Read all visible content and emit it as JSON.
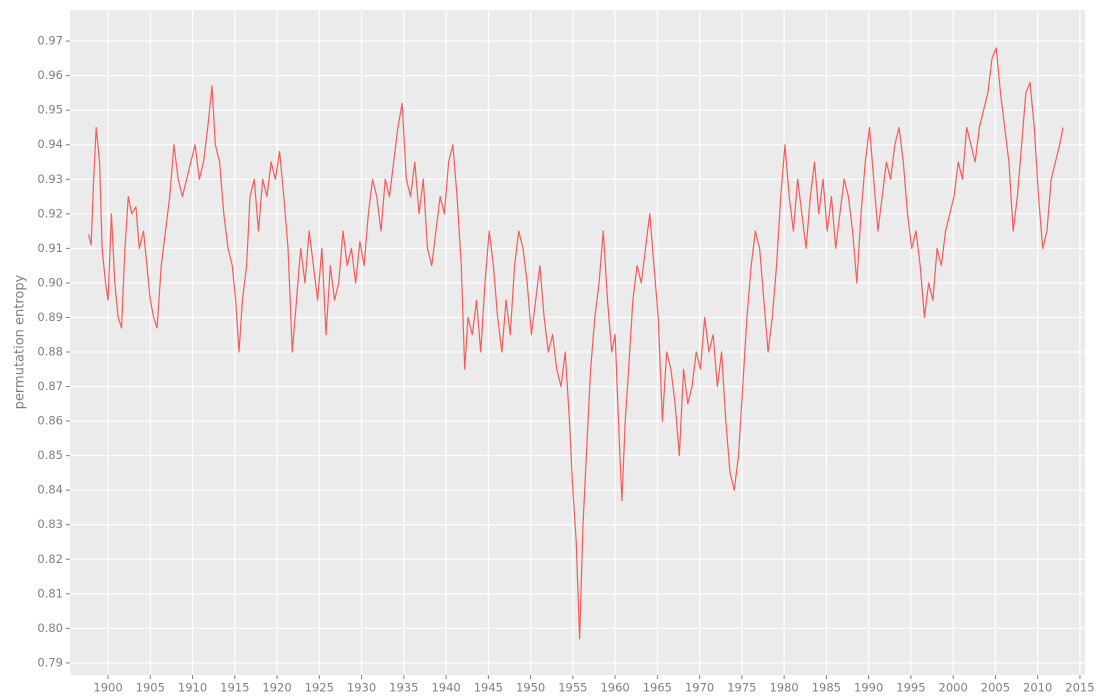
{
  "chart_data": {
    "type": "line",
    "ylabel": "permutation entropy",
    "color": "#f55b5b",
    "grid": true,
    "xlim": [
      1895.5,
      2015.6
    ],
    "ylim": [
      0.7865,
      0.979
    ],
    "xticks": [
      1900,
      1905,
      1910,
      1915,
      1920,
      1925,
      1930,
      1935,
      1940,
      1945,
      1950,
      1955,
      1960,
      1965,
      1970,
      1975,
      1980,
      1985,
      1990,
      1995,
      2000,
      2005,
      2010,
      2015
    ],
    "yticks": [
      0.79,
      {
        "value": 0.8,
        "label": "0.80"
      },
      0.81,
      0.82,
      0.83,
      0.84,
      0.85,
      0.86,
      0.87,
      0.88,
      0.89,
      {
        "value": 0.9,
        "label": "0.90"
      },
      0.91,
      0.92,
      0.93,
      0.94,
      0.95,
      0.96,
      0.97
    ],
    "x": [
      1897.7,
      1898.0,
      1898.3,
      1898.6,
      1899.0,
      1899.3,
      1899.7,
      1900.0,
      1900.4,
      1900.8,
      1901.2,
      1901.6,
      1902.0,
      1902.4,
      1902.8,
      1903.3,
      1903.7,
      1904.2,
      1904.6,
      1905.0,
      1905.4,
      1905.8,
      1906.3,
      1906.8,
      1907.3,
      1907.8,
      1908.3,
      1908.8,
      1909.3,
      1909.8,
      1910.3,
      1910.8,
      1911.3,
      1911.8,
      1912.3,
      1912.7,
      1913.2,
      1913.7,
      1914.2,
      1914.7,
      1915.1,
      1915.5,
      1915.9,
      1916.4,
      1916.8,
      1917.3,
      1917.8,
      1918.3,
      1918.8,
      1919.3,
      1919.8,
      1920.3,
      1920.8,
      1921.3,
      1921.8,
      1922.3,
      1922.8,
      1923.3,
      1923.8,
      1924.3,
      1924.8,
      1925.3,
      1925.8,
      1926.3,
      1926.8,
      1927.3,
      1927.8,
      1928.3,
      1928.8,
      1929.3,
      1929.8,
      1930.3,
      1930.8,
      1931.3,
      1931.8,
      1932.3,
      1932.8,
      1933.3,
      1933.8,
      1934.3,
      1934.8,
      1935.3,
      1935.8,
      1936.3,
      1936.8,
      1937.3,
      1937.8,
      1938.3,
      1938.8,
      1939.3,
      1939.8,
      1940.3,
      1940.8,
      1941.3,
      1941.8,
      1942.2,
      1942.6,
      1943.1,
      1943.6,
      1944.1,
      1944.6,
      1945.1,
      1945.6,
      1946.1,
      1946.6,
      1947.1,
      1947.6,
      1948.1,
      1948.6,
      1949.1,
      1949.6,
      1950.1,
      1950.6,
      1951.1,
      1951.6,
      1952.1,
      1952.6,
      1953.1,
      1953.6,
      1954.1,
      1954.6,
      1955.0,
      1955.4,
      1955.8,
      1956.2,
      1956.6,
      1957.1,
      1957.6,
      1958.1,
      1958.6,
      1959.1,
      1959.6,
      1960.0,
      1960.4,
      1960.8,
      1961.2,
      1961.6,
      1962.1,
      1962.6,
      1963.1,
      1963.6,
      1964.1,
      1964.6,
      1965.1,
      1965.6,
      1966.1,
      1966.6,
      1967.1,
      1967.6,
      1968.1,
      1968.6,
      1969.1,
      1969.6,
      1970.1,
      1970.6,
      1971.1,
      1971.6,
      1972.1,
      1972.6,
      1973.1,
      1973.6,
      1974.1,
      1974.6,
      1975.1,
      1975.6,
      1976.1,
      1976.6,
      1977.1,
      1977.6,
      1978.1,
      1978.6,
      1979.1,
      1979.6,
      1980.1,
      1980.6,
      1981.1,
      1981.6,
      1982.1,
      1982.6,
      1983.1,
      1983.6,
      1984.1,
      1984.6,
      1985.1,
      1985.6,
      1986.1,
      1986.6,
      1987.1,
      1987.6,
      1988.1,
      1988.6,
      1989.1,
      1989.6,
      1990.1,
      1990.6,
      1991.1,
      1991.6,
      1992.1,
      1992.6,
      1993.1,
      1993.6,
      1994.1,
      1994.6,
      1995.1,
      1995.6,
      1996.1,
      1996.6,
      1997.1,
      1997.6,
      1998.1,
      1998.6,
      1999.1,
      1999.6,
      2000.1,
      2000.6,
      2001.1,
      2001.6,
      2002.1,
      2002.6,
      2003.1,
      2003.6,
      2004.1,
      2004.6,
      2005.1,
      2005.6,
      2006.1,
      2006.6,
      2007.1,
      2007.6,
      2008.1,
      2008.6,
      2009.1,
      2009.6,
      2010.1,
      2010.6,
      2011.1,
      2011.6,
      2012.1,
      2012.6,
      2013.0
    ],
    "values": [
      0.914,
      0.911,
      0.93,
      0.945,
      0.935,
      0.91,
      0.9,
      0.895,
      0.92,
      0.9,
      0.89,
      0.887,
      0.91,
      0.925,
      0.92,
      0.922,
      0.91,
      0.915,
      0.905,
      0.895,
      0.89,
      0.887,
      0.905,
      0.915,
      0.925,
      0.94,
      0.93,
      0.925,
      0.93,
      0.935,
      0.94,
      0.93,
      0.935,
      0.945,
      0.957,
      0.94,
      0.935,
      0.92,
      0.91,
      0.905,
      0.895,
      0.88,
      0.895,
      0.905,
      0.925,
      0.93,
      0.915,
      0.93,
      0.925,
      0.935,
      0.93,
      0.938,
      0.925,
      0.91,
      0.88,
      0.895,
      0.91,
      0.9,
      0.915,
      0.905,
      0.895,
      0.91,
      0.885,
      0.905,
      0.895,
      0.9,
      0.915,
      0.905,
      0.91,
      0.9,
      0.912,
      0.905,
      0.92,
      0.93,
      0.925,
      0.915,
      0.93,
      0.925,
      0.935,
      0.945,
      0.952,
      0.93,
      0.925,
      0.935,
      0.92,
      0.93,
      0.91,
      0.905,
      0.915,
      0.925,
      0.92,
      0.935,
      0.94,
      0.925,
      0.905,
      0.875,
      0.89,
      0.885,
      0.895,
      0.88,
      0.9,
      0.915,
      0.905,
      0.89,
      0.88,
      0.895,
      0.885,
      0.905,
      0.915,
      0.91,
      0.9,
      0.885,
      0.895,
      0.905,
      0.89,
      0.88,
      0.885,
      0.875,
      0.87,
      0.88,
      0.86,
      0.84,
      0.825,
      0.797,
      0.83,
      0.85,
      0.875,
      0.89,
      0.9,
      0.915,
      0.895,
      0.88,
      0.885,
      0.86,
      0.837,
      0.86,
      0.875,
      0.895,
      0.905,
      0.9,
      0.91,
      0.92,
      0.905,
      0.89,
      0.86,
      0.88,
      0.875,
      0.865,
      0.85,
      0.875,
      0.865,
      0.87,
      0.88,
      0.875,
      0.89,
      0.88,
      0.885,
      0.87,
      0.88,
      0.86,
      0.845,
      0.84,
      0.85,
      0.87,
      0.89,
      0.905,
      0.915,
      0.91,
      0.895,
      0.88,
      0.89,
      0.905,
      0.925,
      0.94,
      0.925,
      0.915,
      0.93,
      0.92,
      0.91,
      0.925,
      0.935,
      0.92,
      0.93,
      0.915,
      0.925,
      0.91,
      0.92,
      0.93,
      0.925,
      0.915,
      0.9,
      0.92,
      0.935,
      0.945,
      0.93,
      0.915,
      0.925,
      0.935,
      0.93,
      0.94,
      0.945,
      0.935,
      0.92,
      0.91,
      0.915,
      0.905,
      0.89,
      0.9,
      0.895,
      0.91,
      0.905,
      0.915,
      0.92,
      0.925,
      0.935,
      0.93,
      0.945,
      0.94,
      0.935,
      0.945,
      0.95,
      0.955,
      0.965,
      0.968,
      0.955,
      0.945,
      0.935,
      0.915,
      0.925,
      0.94,
      0.955,
      0.958,
      0.945,
      0.925,
      0.91,
      0.915,
      0.93,
      0.935,
      0.94,
      0.945
    ]
  }
}
